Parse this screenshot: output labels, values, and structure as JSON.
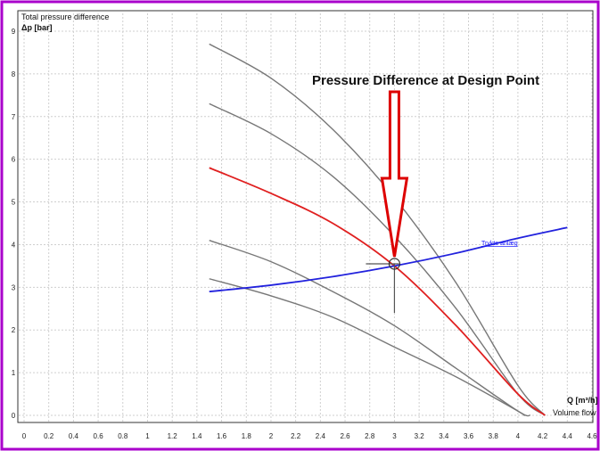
{
  "chart_data": {
    "type": "line",
    "title": "",
    "ylabel_top": "Total pressure difference",
    "ylabel": "Δp [bar]",
    "xlabel": "Q [m³/h]",
    "xlabel_sub": "Volume flow",
    "xlim": [
      0,
      4.6
    ],
    "ylim": [
      0,
      9
    ],
    "x_ticks": [
      "0",
      "0.2",
      "0.4",
      "0.6",
      "0.8",
      "1",
      "1.2",
      "1.4",
      "1.6",
      "1.8",
      "2",
      "2.2",
      "2.4",
      "2.6",
      "2.8",
      "3",
      "3.2",
      "3.4",
      "3.6",
      "3.8",
      "4",
      "4.2",
      "4.4",
      "4.6"
    ],
    "y_ticks": [
      "0",
      "1",
      "2",
      "3",
      "4",
      "5",
      "6",
      "7",
      "8",
      "9"
    ],
    "grid": true,
    "colors": {
      "pump_curves": "#777777",
      "selected_curve": "#e02020",
      "system_curve": "#2222dd",
      "arrow": "#dd0000",
      "frame": "#aa00cc"
    },
    "series": [
      {
        "role": "pump",
        "x": [
          1.5,
          2.0,
          2.5,
          3.0,
          3.5,
          4.0,
          4.22
        ],
        "y": [
          8.7,
          7.9,
          6.7,
          5.1,
          3.1,
          0.7,
          0.0
        ]
      },
      {
        "role": "pump",
        "x": [
          1.5,
          2.0,
          2.5,
          3.0,
          3.5,
          4.0,
          4.22
        ],
        "y": [
          7.3,
          6.6,
          5.6,
          4.2,
          2.5,
          0.5,
          0.0
        ]
      },
      {
        "role": "selected",
        "x": [
          1.5,
          2.0,
          2.5,
          3.0,
          3.5,
          4.0,
          4.22
        ],
        "y": [
          5.8,
          5.2,
          4.5,
          3.5,
          2.1,
          0.5,
          0.0
        ]
      },
      {
        "role": "pump",
        "x": [
          1.5,
          2.0,
          2.5,
          3.0,
          3.5,
          4.0,
          4.1
        ],
        "y": [
          4.1,
          3.6,
          2.9,
          2.1,
          1.1,
          0.1,
          0.0
        ]
      },
      {
        "role": "pump",
        "x": [
          1.5,
          2.0,
          2.5,
          3.0,
          3.5,
          4.0,
          4.05
        ],
        "y": [
          3.2,
          2.8,
          2.3,
          1.6,
          0.9,
          0.1,
          0.0
        ]
      },
      {
        "role": "system",
        "x": [
          1.5,
          2.0,
          2.5,
          3.0,
          3.5,
          4.0,
          4.4
        ],
        "y": [
          2.9,
          3.05,
          3.25,
          3.5,
          3.8,
          4.15,
          4.4
        ]
      }
    ],
    "system_curve_label": "Trykte anlæg",
    "design_point": {
      "x": 3.0,
      "y": 3.55
    },
    "design_line_bottom": 2.4,
    "annotation": "Pressure Difference at Design Point"
  }
}
